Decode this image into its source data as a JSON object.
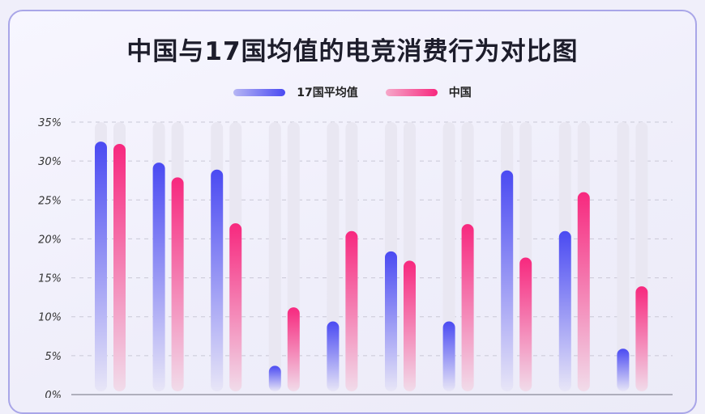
{
  "chart_data": {
    "type": "bar",
    "title": "中国与17国均值的电竞消费行为对比图",
    "categories": [
      "",
      "",
      "",
      "",
      "",
      "",
      "",
      "",
      "",
      ""
    ],
    "series": [
      {
        "name": "17国平均值",
        "values": [
          32.5,
          29.8,
          28.9,
          3.7,
          9.4,
          18.4,
          9.4,
          28.8,
          21.0,
          5.9
        ]
      },
      {
        "name": "中国",
        "values": [
          32.2,
          27.9,
          22.0,
          11.2,
          21.0,
          17.2,
          21.9,
          17.6,
          26.0,
          13.9
        ]
      }
    ],
    "ylim": [
      0,
      35
    ],
    "yticks": [
      "0%",
      "5%",
      "10%",
      "15%",
      "20%",
      "25%",
      "30%",
      "35%"
    ],
    "grid": true,
    "legend": "top-center",
    "colors": {
      "series1_top": "#4a4af2",
      "series1_bottom": "#e8e6f7",
      "series2_top": "#f7287e",
      "series2_bottom": "#f1dcea",
      "track": "#e9e7f2"
    }
  }
}
